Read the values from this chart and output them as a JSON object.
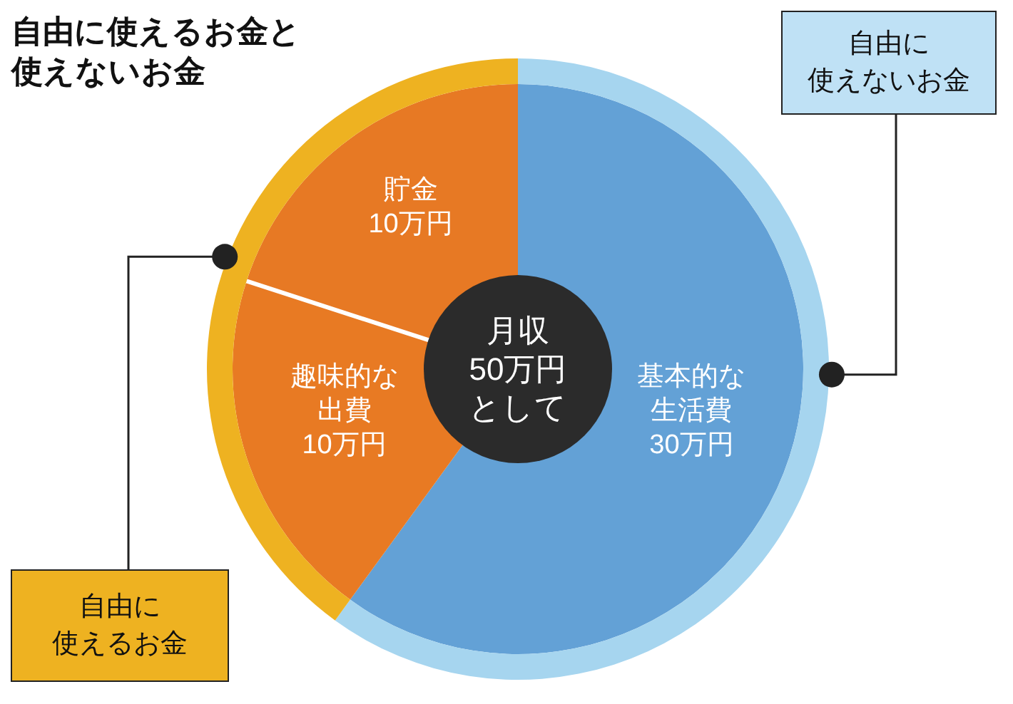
{
  "chart_data": [
    {
      "type": "donut",
      "title": "自由に使えるお金と使えないお金",
      "categories": [
        "基本的な生活費30万円",
        "趣味的な出費10万円",
        "貯金10万円"
      ],
      "values": [
        30,
        10,
        10
      ],
      "colors": [
        "#63a1d6",
        "#e87a23",
        "#e77924"
      ],
      "annotations": [
        "月収50万円として"
      ]
    },
    {
      "type": "donut",
      "categories": [
        "自由に使えないお金",
        "自由に使えるお金"
      ],
      "values": [
        60,
        40
      ],
      "colors": [
        "#a6d5ef",
        "#eeb221"
      ]
    }
  ]
}
